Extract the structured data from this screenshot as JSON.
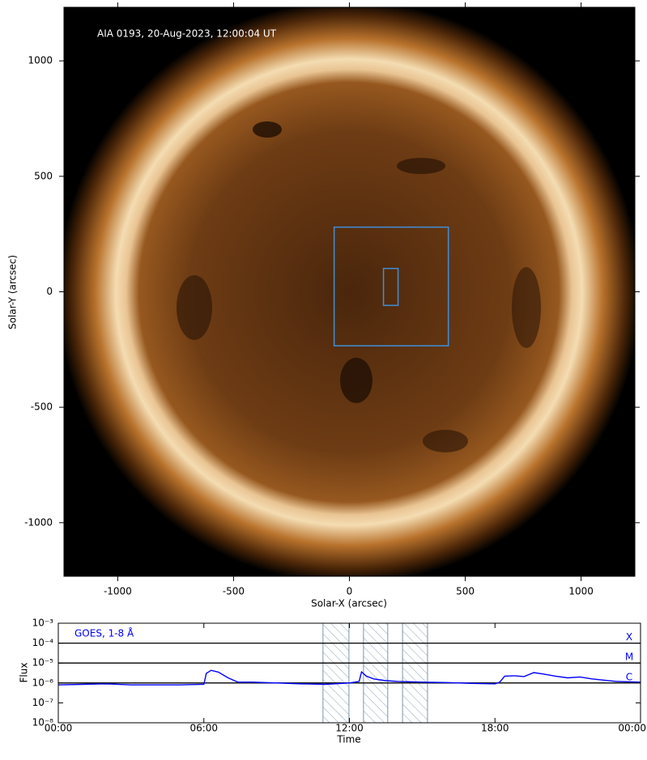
{
  "chart_data": [
    {
      "type": "image",
      "annotation": "AIA 0193, 20-Aug-2023, 12:00:04 UT",
      "xlabel": "Solar-X (arcsec)",
      "ylabel": "Solar-Y (arcsec)",
      "xlim": [
        -1232,
        1232
      ],
      "ylim": [
        -1232,
        1232
      ],
      "xticks": [
        -1000,
        -500,
        0,
        500,
        1000
      ],
      "yticks": [
        -1000,
        -500,
        0,
        500,
        1000
      ],
      "regions": [
        {
          "x": [
            -66,
            427
          ],
          "y": [
            -234,
            280
          ],
          "color": "#3f8fd8"
        },
        {
          "x": [
            147,
            210
          ],
          "y": [
            -59,
            101
          ],
          "color": "#3f8fd8"
        }
      ]
    },
    {
      "type": "line",
      "xlabel": "Time",
      "ylabel": "Flux",
      "log_y": true,
      "xlim": [
        0,
        24
      ],
      "ylim": [
        1e-08,
        0.001
      ],
      "xticks": [
        {
          "value": 0,
          "label": "00:00"
        },
        {
          "value": 6,
          "label": "06:00"
        },
        {
          "value": 12,
          "label": "12:00"
        },
        {
          "value": 18,
          "label": "18:00"
        },
        {
          "value": 24,
          "label": "00:00"
        }
      ],
      "yticks": [
        {
          "value": 0.001,
          "label": "10⁻³"
        },
        {
          "value": 0.0001,
          "label": "10⁻⁴"
        },
        {
          "value": 1e-05,
          "label": "10⁻⁵"
        },
        {
          "value": 1e-06,
          "label": "10⁻⁶"
        },
        {
          "value": 1e-07,
          "label": "10⁻⁷"
        },
        {
          "value": 1e-08,
          "label": "10⁻⁸"
        }
      ],
      "thresholds": [
        {
          "value": 0.0001,
          "label": "X"
        },
        {
          "value": 1e-05,
          "label": "M"
        },
        {
          "value": 1e-06,
          "label": "C"
        }
      ],
      "intervals": [
        [
          10.91,
          11.98
        ],
        [
          12.58,
          13.58
        ],
        [
          14.19,
          15.22
        ]
      ],
      "x": [
        0,
        1,
        2,
        3,
        4,
        5,
        6,
        6.1,
        6.3,
        6.6,
        7,
        7.4,
        8,
        9,
        10,
        11,
        12,
        12.4,
        12.5,
        12.7,
        13,
        13.5,
        14,
        15,
        16,
        17,
        18,
        18.2,
        18.4,
        18.8,
        19.2,
        19.6,
        20,
        20.5,
        21,
        21.5,
        22,
        23,
        24
      ],
      "series": [
        {
          "name": "GOES, 1-8 Å",
          "color": "#0000ff",
          "values": [
            8e-07,
            8.5e-07,
            9e-07,
            8e-07,
            8e-07,
            8e-07,
            8.5e-07,
            3e-06,
            4.3e-06,
            3.5e-06,
            1.8e-06,
            1.1e-06,
            1.1e-06,
            1e-06,
            9e-07,
            8.5e-07,
            1e-06,
            1.2e-06,
            3.6e-06,
            2.2e-06,
            1.6e-06,
            1.3e-06,
            1.2e-06,
            1.1e-06,
            1.05e-06,
            9.5e-07,
            9e-07,
            1.1e-06,
            2.2e-06,
            2.3e-06,
            2.1e-06,
            3.3e-06,
            2.8e-06,
            2.2e-06,
            1.8e-06,
            2e-06,
            1.6e-06,
            1.2e-06,
            1.1e-06
          ]
        }
      ]
    }
  ]
}
